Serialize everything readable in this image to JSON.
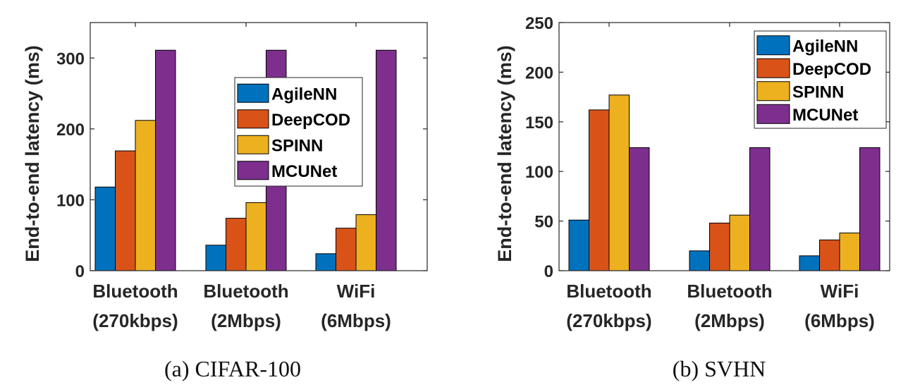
{
  "colors": {
    "AgileNN": "#0072BD",
    "DeepCOD": "#D95319",
    "SPINN": "#EDB120",
    "MCUNet": "#7E2F8E"
  },
  "chart_data": [
    {
      "type": "bar",
      "caption": "(a)  CIFAR-100",
      "ylabel": "End-to-end latency (ms)",
      "ylim": [
        0,
        350
      ],
      "yticks": [
        0,
        100,
        200,
        300
      ],
      "categories": [
        [
          "Bluetooth",
          "(270kbps)"
        ],
        [
          "Bluetooth",
          "(2Mbps)"
        ],
        [
          "WiFi",
          "(6Mbps)"
        ]
      ],
      "series": [
        {
          "name": "AgileNN",
          "values": [
            118,
            36,
            24
          ]
        },
        {
          "name": "DeepCOD",
          "values": [
            169,
            74,
            60
          ]
        },
        {
          "name": "SPINN",
          "values": [
            212,
            96,
            79
          ]
        },
        {
          "name": "MCUNet",
          "values": [
            311,
            311,
            311
          ]
        }
      ],
      "legend_position": "inside right-middle",
      "grid": false
    },
    {
      "type": "bar",
      "caption": "(b)  SVHN",
      "ylabel": "End-to-end latency (ms)",
      "ylim": [
        0,
        250
      ],
      "yticks": [
        0,
        50,
        100,
        150,
        200,
        250
      ],
      "categories": [
        [
          "Bluetooth",
          "(270kbps)"
        ],
        [
          "Bluetooth",
          "(2Mbps)"
        ],
        [
          "WiFi",
          "(6Mbps)"
        ]
      ],
      "series": [
        {
          "name": "AgileNN",
          "values": [
            51,
            20,
            15
          ]
        },
        {
          "name": "DeepCOD",
          "values": [
            162,
            48,
            31
          ]
        },
        {
          "name": "SPINN",
          "values": [
            177,
            56,
            38
          ]
        },
        {
          "name": "MCUNet",
          "values": [
            124,
            124,
            124
          ]
        }
      ],
      "legend_position": "top-right",
      "grid": false
    }
  ]
}
